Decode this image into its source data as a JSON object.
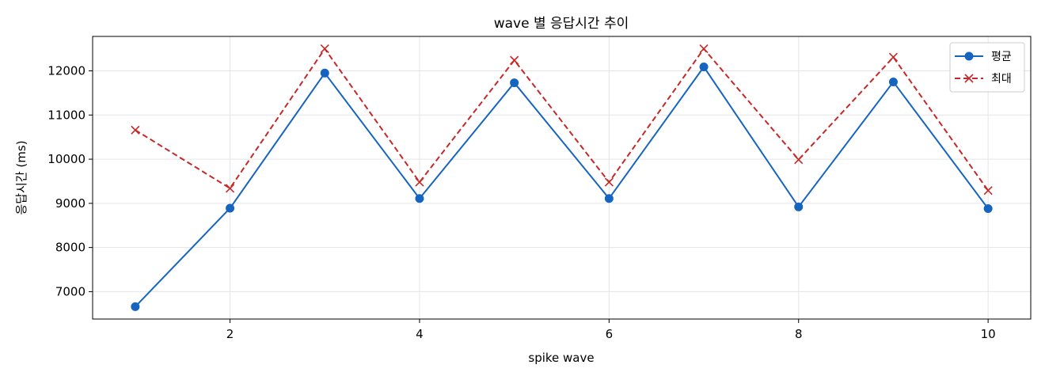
{
  "chart_data": {
    "type": "line",
    "title": "wave 별 응답시간 추이",
    "xlabel": "spike wave",
    "ylabel": "응답시간 (ms)",
    "x": [
      1,
      2,
      3,
      4,
      5,
      6,
      7,
      8,
      9,
      10
    ],
    "xlim": [
      0.55,
      10.45
    ],
    "ylim": [
      6380,
      12780
    ],
    "x_ticks": [
      2,
      4,
      6,
      8,
      10
    ],
    "y_ticks": [
      7000,
      8000,
      9000,
      10000,
      11000,
      12000
    ],
    "grid": true,
    "legend_position": "top-right",
    "series": [
      {
        "name": "평균",
        "color": "#1565c0",
        "line_style": "solid",
        "marker": "circle",
        "values": [
          6660,
          8890,
          11950,
          9110,
          11730,
          9110,
          12090,
          8920,
          11750,
          8880
        ]
      },
      {
        "name": "최대",
        "color": "#c62828",
        "line_style": "dashed",
        "marker": "x",
        "values": [
          10660,
          9340,
          12500,
          9480,
          12240,
          9480,
          12500,
          9990,
          12310,
          9290
        ]
      }
    ]
  }
}
